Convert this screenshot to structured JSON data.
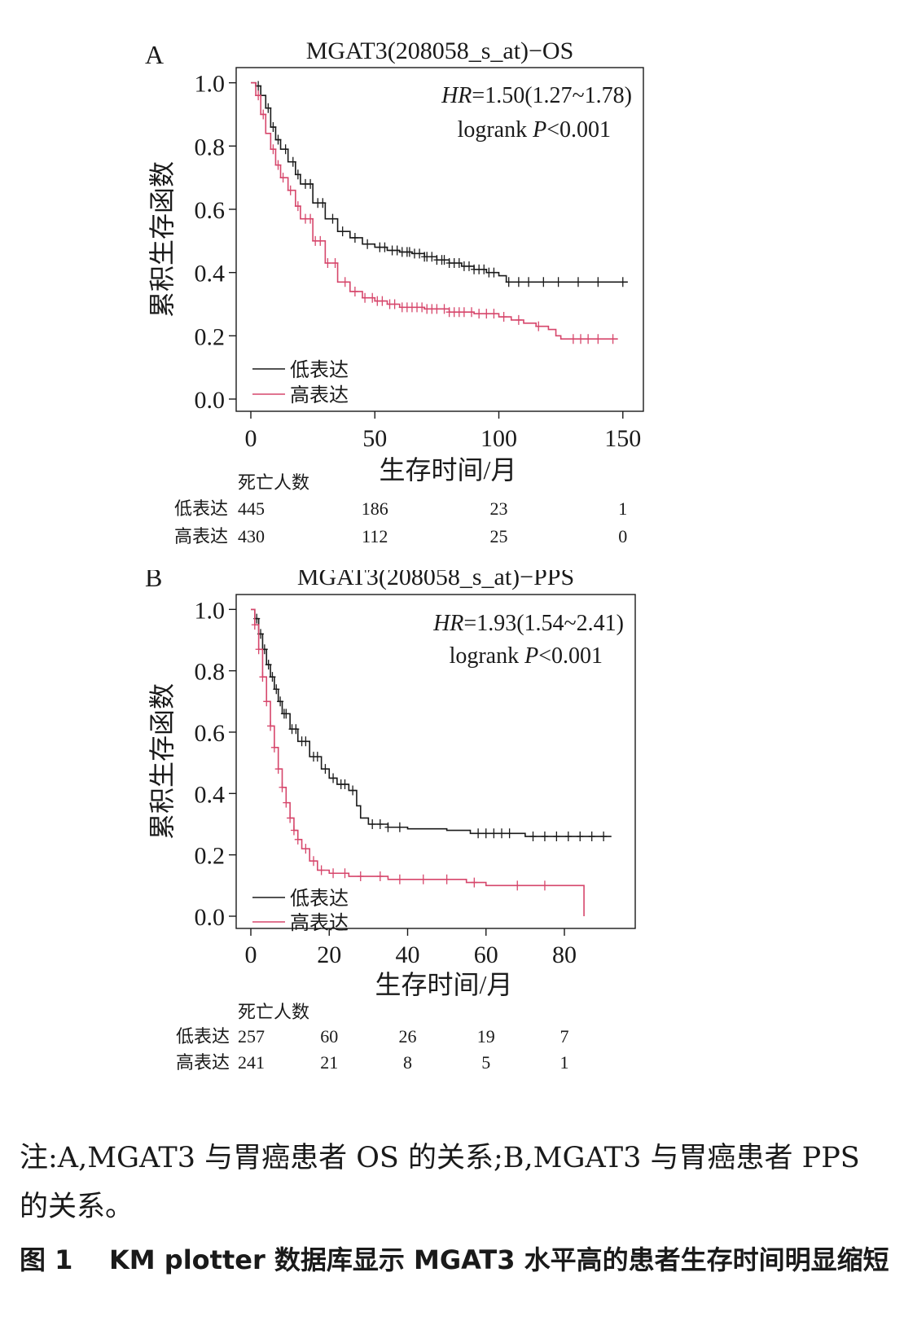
{
  "chart_data": [
    {
      "type": "line",
      "panel_label": "A",
      "title": "MGAT3(208058_s_at)−OS",
      "xlabel": "生存时间/月",
      "ylabel": "累积生存函数",
      "xlim": [
        0,
        155
      ],
      "ylim": [
        0,
        1.03
      ],
      "xticks": [
        0,
        50,
        100,
        150
      ],
      "yticks": [
        0.0,
        0.2,
        0.4,
        0.6,
        0.8,
        1.0
      ],
      "xtick_labels": [
        "0",
        "50",
        "100",
        "150"
      ],
      "ytick_labels": [
        "0.0",
        "0.2",
        "0.4",
        "0.6",
        "0.8",
        "1.0"
      ],
      "annotations": {
        "hr_prefix": "HR",
        "hr_value": "=1.50(1.27~1.78)",
        "logrank_text": "logrank ",
        "p_symbol": "P",
        "p_value": "<0.001"
      },
      "legend_position": "bottom-left",
      "series": [
        {
          "name": "低表达",
          "color": "#1a1a1a",
          "points": [
            [
              0,
              1.0
            ],
            [
              2,
              0.99
            ],
            [
              4,
              0.96
            ],
            [
              6,
              0.92
            ],
            [
              8,
              0.86
            ],
            [
              10,
              0.82
            ],
            [
              12,
              0.79
            ],
            [
              15,
              0.75
            ],
            [
              18,
              0.71
            ],
            [
              20,
              0.68
            ],
            [
              25,
              0.62
            ],
            [
              30,
              0.57
            ],
            [
              35,
              0.53
            ],
            [
              40,
              0.51
            ],
            [
              45,
              0.49
            ],
            [
              50,
              0.48
            ],
            [
              55,
              0.47
            ],
            [
              60,
              0.465
            ],
            [
              65,
              0.46
            ],
            [
              70,
              0.45
            ],
            [
              75,
              0.44
            ],
            [
              80,
              0.43
            ],
            [
              85,
              0.42
            ],
            [
              90,
              0.41
            ],
            [
              95,
              0.4
            ],
            [
              100,
              0.39
            ],
            [
              103,
              0.37
            ],
            [
              152,
              0.37
            ]
          ],
          "censors": [
            3,
            7,
            9,
            11,
            14,
            17,
            19,
            22,
            24,
            27,
            29,
            33,
            37,
            42,
            47,
            52,
            54,
            57,
            59,
            61,
            63,
            64,
            66,
            68,
            70,
            71,
            73,
            75,
            77,
            78,
            80,
            82,
            84,
            86,
            88,
            90,
            92,
            94,
            96,
            98,
            104,
            108,
            112,
            118,
            124,
            132,
            140,
            150
          ]
        },
        {
          "name": "高表达",
          "color": "#d6466b",
          "points": [
            [
              0,
              1.0
            ],
            [
              2,
              0.96
            ],
            [
              4,
              0.9
            ],
            [
              6,
              0.84
            ],
            [
              8,
              0.79
            ],
            [
              10,
              0.74
            ],
            [
              12,
              0.7
            ],
            [
              15,
              0.66
            ],
            [
              18,
              0.61
            ],
            [
              20,
              0.57
            ],
            [
              25,
              0.5
            ],
            [
              30,
              0.43
            ],
            [
              35,
              0.37
            ],
            [
              40,
              0.34
            ],
            [
              45,
              0.32
            ],
            [
              50,
              0.31
            ],
            [
              55,
              0.3
            ],
            [
              60,
              0.29
            ],
            [
              70,
              0.285
            ],
            [
              80,
              0.275
            ],
            [
              90,
              0.27
            ],
            [
              100,
              0.26
            ],
            [
              105,
              0.25
            ],
            [
              110,
              0.24
            ],
            [
              115,
              0.23
            ],
            [
              120,
              0.22
            ],
            [
              123,
              0.2
            ],
            [
              125,
              0.19
            ],
            [
              148,
              0.19
            ]
          ],
          "censors": [
            3,
            5,
            9,
            11,
            13,
            16,
            19,
            22,
            24,
            26,
            28,
            31,
            34,
            38,
            42,
            46,
            49,
            51,
            53,
            56,
            58,
            61,
            63,
            65,
            67,
            69,
            71,
            73,
            75,
            78,
            80,
            82,
            84,
            86,
            89,
            92,
            95,
            98,
            102,
            108,
            116,
            130,
            133,
            136,
            140,
            146
          ]
        }
      ],
      "risk_table": {
        "header": "死亡人数",
        "timepoints": [
          0,
          50,
          100,
          150
        ],
        "rows": [
          {
            "label": "低表达",
            "color": "#1a1a1a",
            "values": [
              "445",
              "186",
              "23",
              "1"
            ]
          },
          {
            "label": "高表达",
            "color": "#d6466b",
            "values": [
              "430",
              "112",
              "25",
              "0"
            ]
          }
        ]
      }
    },
    {
      "type": "line",
      "panel_label": "B",
      "title": "MGAT3(208058_s_at)−PPS",
      "xlabel": "生存时间/月",
      "ylabel": "累积生存函数",
      "xlim": [
        0,
        96
      ],
      "ylim": [
        0,
        1.03
      ],
      "xticks": [
        0,
        20,
        40,
        60,
        80
      ],
      "yticks": [
        0.0,
        0.2,
        0.4,
        0.6,
        0.8,
        1.0
      ],
      "xtick_labels": [
        "0",
        "20",
        "40",
        "60",
        "80"
      ],
      "ytick_labels": [
        "0.0",
        "0.2",
        "0.4",
        "0.6",
        "0.8",
        "1.0"
      ],
      "annotations": {
        "hr_prefix": "HR",
        "hr_value": "=1.93(1.54~2.41)",
        "logrank_text": "logrank ",
        "p_symbol": "P",
        "p_value": "<0.001"
      },
      "legend_position": "bottom-left",
      "series": [
        {
          "name": "低表达",
          "color": "#1a1a1a",
          "points": [
            [
              0,
              1.0
            ],
            [
              1,
              0.97
            ],
            [
              2,
              0.92
            ],
            [
              3,
              0.87
            ],
            [
              4,
              0.82
            ],
            [
              5,
              0.78
            ],
            [
              6,
              0.74
            ],
            [
              7,
              0.7
            ],
            [
              8,
              0.66
            ],
            [
              10,
              0.61
            ],
            [
              12,
              0.57
            ],
            [
              15,
              0.52
            ],
            [
              18,
              0.48
            ],
            [
              20,
              0.45
            ],
            [
              22,
              0.43
            ],
            [
              25,
              0.41
            ],
            [
              27,
              0.36
            ],
            [
              28,
              0.32
            ],
            [
              30,
              0.3
            ],
            [
              35,
              0.29
            ],
            [
              40,
              0.285
            ],
            [
              50,
              0.28
            ],
            [
              55,
              0.28
            ],
            [
              56,
              0.27
            ],
            [
              68,
              0.27
            ],
            [
              70,
              0.26
            ],
            [
              92,
              0.26
            ]
          ],
          "censors": [
            1.5,
            2.5,
            3.5,
            4.5,
            5.5,
            6.5,
            7.5,
            8.5,
            9,
            10.5,
            11.5,
            13,
            14,
            16,
            17,
            19,
            21,
            23,
            24,
            26,
            31,
            33,
            35,
            38,
            58,
            60,
            62,
            64,
            66,
            72,
            75,
            78,
            81,
            84,
            87,
            90
          ]
        },
        {
          "name": "高表达",
          "color": "#d6466b",
          "points": [
            [
              0,
              1.0
            ],
            [
              1,
              0.95
            ],
            [
              2,
              0.87
            ],
            [
              3,
              0.78
            ],
            [
              4,
              0.7
            ],
            [
              5,
              0.62
            ],
            [
              6,
              0.55
            ],
            [
              7,
              0.48
            ],
            [
              8,
              0.42
            ],
            [
              9,
              0.37
            ],
            [
              10,
              0.32
            ],
            [
              11,
              0.28
            ],
            [
              12,
              0.25
            ],
            [
              13,
              0.22
            ],
            [
              15,
              0.18
            ],
            [
              17,
              0.15
            ],
            [
              20,
              0.14
            ],
            [
              25,
              0.13
            ],
            [
              35,
              0.12
            ],
            [
              55,
              0.11
            ],
            [
              60,
              0.1
            ],
            [
              85,
              0.1
            ],
            [
              85,
              0.0
            ]
          ],
          "censors": [
            1,
            2,
            3,
            4,
            5,
            6,
            7,
            8,
            9,
            10,
            11,
            12,
            14,
            16,
            18,
            21,
            24,
            28,
            33,
            38,
            44,
            50,
            57,
            68,
            75
          ]
        }
      ],
      "risk_table": {
        "header": "死亡人数",
        "timepoints": [
          0,
          20,
          40,
          60,
          80
        ],
        "rows": [
          {
            "label": "低表达",
            "color": "#1a1a1a",
            "values": [
              "257",
              "60",
              "26",
              "19",
              "7"
            ]
          },
          {
            "label": "高表达",
            "color": "#d6466b",
            "values": [
              "241",
              "21",
              "8",
              "5",
              "1"
            ]
          }
        ]
      }
    }
  ],
  "note": "注:A,MGAT3 与胃癌患者 OS 的关系;B,MGAT3 与胃癌患者 PPS 的关系。",
  "figure_caption": {
    "label": "图 1",
    "text": "KM plotter 数据库显示 MGAT3 水平高的患者生存时间明显缩短"
  }
}
